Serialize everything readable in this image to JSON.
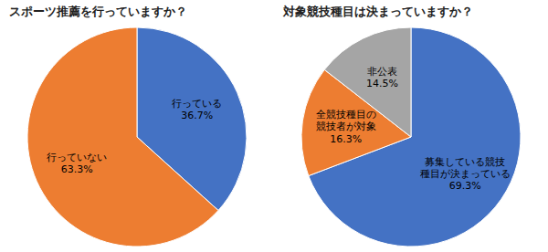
{
  "chart_data": [
    {
      "type": "pie",
      "title": "スポーツ推薦を行っていますか？",
      "categories": [
        "行っている",
        "行っていない"
      ],
      "values": [
        36.7,
        63.3
      ],
      "value_labels": [
        "36.7%",
        "63.3%"
      ],
      "colors": [
        "#4472C4",
        "#ED7D31"
      ],
      "data_labels": true
    },
    {
      "type": "pie",
      "title": "対象競技種目は決まっていますか？",
      "categories": [
        "募集している競技\n種目が決まっている",
        "全競技種目の\n競技者が対象",
        "非公表"
      ],
      "values": [
        69.3,
        16.3,
        14.5
      ],
      "value_labels": [
        "69.3%",
        "16.3%",
        "14.5%"
      ],
      "colors": [
        "#4472C4",
        "#ED7D31",
        "#A5A5A5"
      ],
      "data_labels": true
    }
  ]
}
